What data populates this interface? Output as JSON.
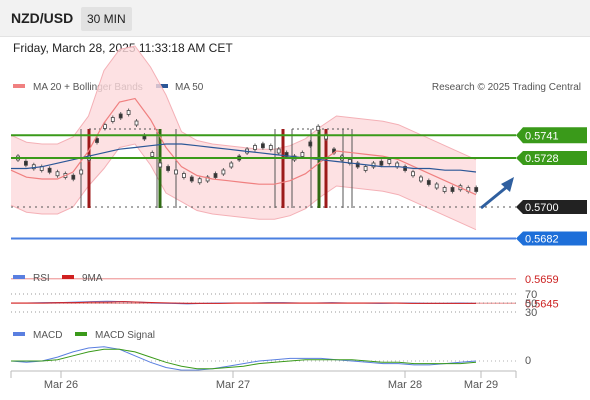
{
  "header": {
    "pair": "NZD/USD",
    "interval": "30 MIN",
    "datetime": "Friday, March 28, 2025 11:33:18 AM CET"
  },
  "price_legend": {
    "ma20_label": "MA 20 + Bollinger Bands",
    "ma50_label": "MA 50",
    "credit": "Research © 2025 Trading Central"
  },
  "rsi_legend": {
    "rsi_label": "RSI",
    "ma_label": "9MA"
  },
  "macd_legend": {
    "macd_label": "MACD",
    "signal_label": "MACD Signal"
  },
  "colors": {
    "ma20": "#f08080",
    "ma50": "#2b5797",
    "band_fill": "#fcd9dc",
    "bullish_line": "#3a9a1a",
    "pivot_line": "#4a7fe0",
    "support_line": "#f0a0a0",
    "rsi": "#5a7fe0",
    "rsi_ma": "#d02020",
    "macd": "#5a7fe0",
    "signal": "#3a9a1a",
    "arrow": "#2f5f9f"
  },
  "chart_data": [
    {
      "type": "candlestick",
      "title": "NZD/USD 30 MIN",
      "x_ticks": [
        "Mar 26",
        "Mar 27",
        "Mar 28",
        "Mar 29"
      ],
      "ylim": [
        0.5635,
        0.5775
      ],
      "price_labels": [
        {
          "value": 0.5741,
          "label": "0.5741",
          "style": "resistance"
        },
        {
          "value": 0.5728,
          "label": "0.5728",
          "style": "resistance"
        },
        {
          "value": 0.57,
          "label": "0.5700",
          "style": "last"
        },
        {
          "value": 0.5682,
          "label": "0.5682",
          "style": "pivot"
        },
        {
          "value": 0.5659,
          "label": "0.5659",
          "style": "support"
        },
        {
          "value": 0.5645,
          "label": "0.5645",
          "style": "support"
        }
      ],
      "series": [
        {
          "name": "MA 20 + Bollinger Bands",
          "values": [
            0.5721,
            0.5717,
            0.5716,
            0.5716,
            0.572,
            0.5732,
            0.5748,
            0.576,
            0.5762,
            0.575,
            0.5734,
            0.5723,
            0.5718,
            0.5716,
            0.5715,
            0.5714,
            0.5713,
            0.5713,
            0.5715,
            0.5719,
            0.5726,
            0.5732,
            0.5731,
            0.573,
            0.5729,
            0.5727,
            0.5723,
            0.5719,
            0.5715,
            0.5711,
            0.5707
          ]
        },
        {
          "name": "MA 50",
          "values": [
            0.5722,
            0.5722,
            0.5723,
            0.5725,
            0.5727,
            0.5729,
            0.5731,
            0.5733,
            0.5734,
            0.5735,
            0.5736,
            0.5736,
            0.5735,
            0.5734,
            0.5733,
            0.5732,
            0.5731,
            0.573,
            0.5729,
            0.5728,
            0.5727,
            0.5726,
            0.5725,
            0.5724,
            0.5723,
            0.5723,
            0.5722,
            0.5722,
            0.5721,
            0.5721,
            0.572
          ]
        }
      ]
    },
    {
      "type": "line",
      "title": "RSI",
      "yticks": [
        "70",
        "50",
        "30"
      ],
      "series": [
        {
          "name": "RSI",
          "values": [
            50,
            50,
            51,
            51,
            52,
            53,
            54,
            53,
            52,
            50,
            49,
            48,
            49,
            50,
            50,
            50,
            51,
            51,
            50,
            50,
            51,
            50,
            50,
            49,
            50,
            50,
            49,
            49,
            50,
            49
          ]
        },
        {
          "name": "9MA",
          "values": [
            50,
            50,
            50,
            51,
            51,
            52,
            52,
            53,
            52,
            51,
            50,
            49,
            49,
            49,
            50,
            50,
            50,
            50,
            50,
            50,
            50,
            50,
            50,
            50,
            50,
            49,
            49,
            49,
            49,
            49
          ]
        }
      ]
    },
    {
      "type": "line",
      "title": "MACD",
      "yticks": [
        "0"
      ],
      "series": [
        {
          "name": "MACD",
          "values": [
            0,
            -0.0001,
            0,
            0.0003,
            0.0007,
            0.001,
            0.0011,
            0.0009,
            0.0004,
            -0.0001,
            -0.0005,
            -0.0007,
            -0.0007,
            -0.0006,
            -0.0004,
            -0.0002,
            0,
            0.0001,
            0.0002,
            0.0002,
            0.0002,
            0.0001,
            0,
            -0.0001,
            -0.0002,
            -0.0002,
            -0.0003,
            -0.0003,
            -0.0002,
            -0.0001,
            0
          ]
        },
        {
          "name": "MACD Signal",
          "values": [
            0,
            0,
            0,
            0.0001,
            0.0004,
            0.0007,
            0.0009,
            0.0009,
            0.0007,
            0.0003,
            -0.0001,
            -0.0004,
            -0.0006,
            -0.0006,
            -0.0005,
            -0.0004,
            -0.0002,
            -0.0001,
            0,
            0.0001,
            0.0001,
            0.0001,
            0.0001,
            0,
            -0.0001,
            -0.0001,
            -0.0002,
            -0.0002,
            -0.0002,
            -0.0002,
            -0.0001
          ]
        }
      ]
    }
  ]
}
